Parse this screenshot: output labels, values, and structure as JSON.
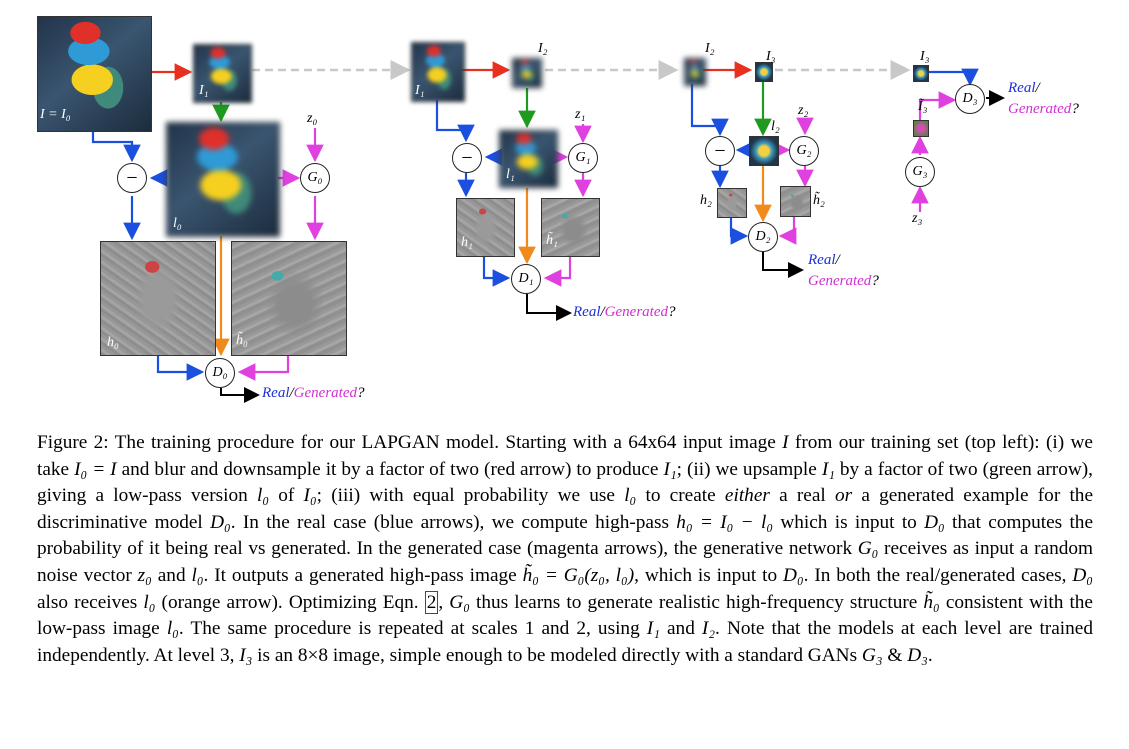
{
  "figure": {
    "labels": {
      "I_eq_I0": "I = I₀",
      "I1": "I₁",
      "I2": "I₂",
      "I3": "I₃",
      "z0": "z₀",
      "z1": "z₁",
      "z2": "z₂",
      "z3": "z₃",
      "l0": "l₀",
      "l1": "l₁",
      "l2": "l₂",
      "h0": "h₀",
      "h0_tilde": "h̃₀",
      "h1": "h₁",
      "h1_tilde": "h̃₁",
      "h2": "h₂",
      "h2_tilde": "h̃₂",
      "I3_tilde": "Ĩ₃",
      "G0": "G₀",
      "G1": "G₁",
      "G2": "G₂",
      "G3": "G₃",
      "D0": "D₀",
      "D1": "D₁",
      "D2": "D₂",
      "D3": "D₃",
      "minus": "−",
      "real": "Real",
      "slash": "/",
      "generated": "Generated",
      "question": "?"
    },
    "colors": {
      "red_arrow": "#e8301f",
      "green_arrow": "#1e9a1e",
      "blue_arrow": "#1a4fe0",
      "magenta_arrow": "#e040e0",
      "orange_arrow": "#f08a1a",
      "gray_dashed": "#c8c8c8"
    }
  },
  "caption": {
    "fig_label": "Figure 2:",
    "text_parts": [
      "The training procedure for our LAPGAN model. Starting with a 64x64 input image ",
      "I",
      " from our training set (top left): (i) we take ",
      "I₀ = I",
      " and blur and downsample it by a factor of two (red arrow) to produce ",
      "I₁",
      "; (ii) we upsample ",
      "I₁",
      " by a factor of two (green arrow), giving a low-pass version ",
      "l₀",
      " of ",
      "I₀",
      "; (iii) with equal probability we use ",
      "l₀",
      " to create ",
      "either",
      " a real ",
      "or",
      " a generated example for the discriminative model ",
      "D₀",
      ". In the real case (blue arrows), we compute high-pass ",
      "h₀ = I₀ − l₀",
      " which is input to ",
      "D₀",
      " that computes the probability of it being real vs generated. In the generated case (magenta arrows), the generative network ",
      "G₀",
      " receives as input a random noise vector ",
      "z₀",
      " and ",
      "l₀",
      ". It outputs a generated high-pass image ",
      "h̃₀ = G₀(z₀, l₀)",
      ", which is input to ",
      "D₀",
      ". In both the real/generated cases, ",
      "D₀",
      " also receives ",
      "l₀",
      " (orange arrow). Optimizing Eqn. ",
      "2",
      ", ",
      "G₀",
      " thus learns to generate realistic high-frequency structure ",
      "h̃₀",
      " consistent with the low-pass image ",
      "l₀",
      ". The same procedure is repeated at scales 1 and 2, using ",
      "I₁",
      " and ",
      "I₂",
      ". Note that the models at each level are trained independently. At level 3, ",
      "I₃",
      " is an 8×8 image, simple enough to be modeled directly with a standard GANs ",
      "G₃",
      " & ",
      "D₃",
      "."
    ]
  }
}
